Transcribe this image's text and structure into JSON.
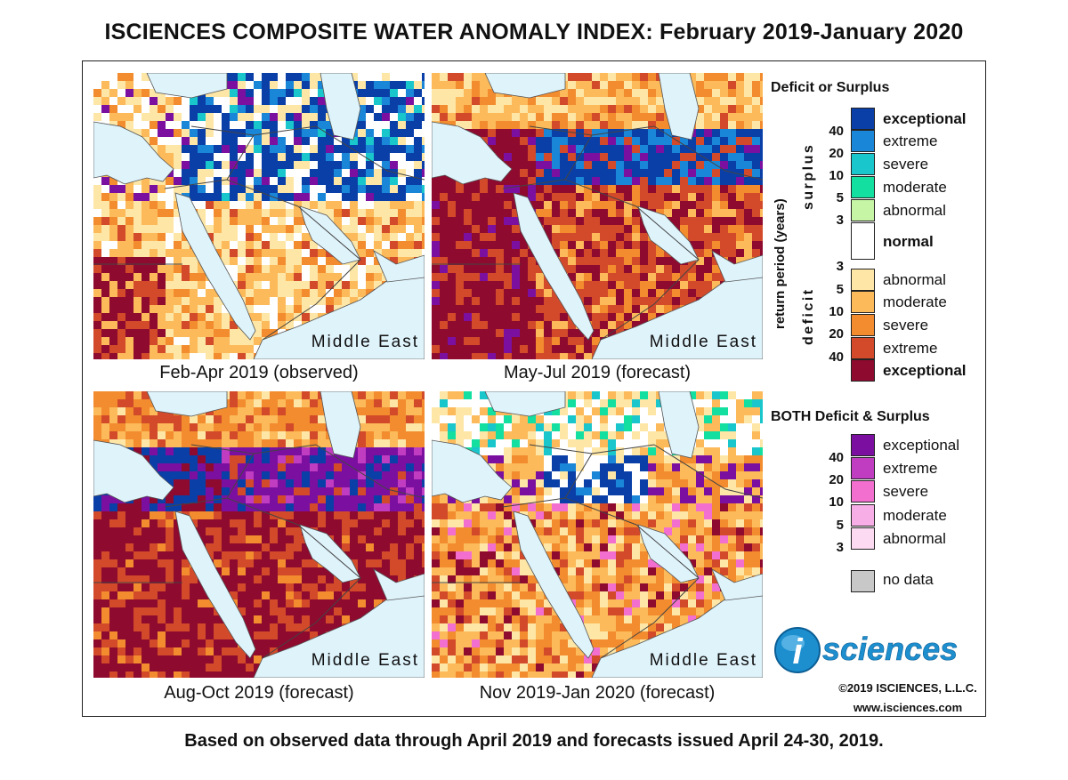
{
  "title": "ISCIENCES COMPOSITE WATER ANOMALY INDEX: February 2019-January 2020",
  "footer": "Based on observed data through April 2019 and forecasts issued April 24-30, 2019.",
  "maps": [
    {
      "caption": "Feb-Apr 2019 (observed)",
      "region": "Middle East"
    },
    {
      "caption": "May-Jul 2019 (forecast)",
      "region": "Middle East"
    },
    {
      "caption": "Aug-Oct 2019 (forecast)",
      "region": "Middle East"
    },
    {
      "caption": "Nov 2019-Jan 2020 (forecast)",
      "region": "Middle East"
    }
  ],
  "legend": {
    "deficit_surplus_title": "Deficit or Surplus",
    "axis_label": "return period (years)",
    "surplus_label": "surplus",
    "deficit_label": "deficit",
    "surplus_numbers": [
      "40",
      "20",
      "10",
      "5",
      "3"
    ],
    "deficit_numbers": [
      "3",
      "5",
      "10",
      "20",
      "40"
    ],
    "classes": [
      {
        "label": "exceptional",
        "color": "#0a3fa8"
      },
      {
        "label": "extreme",
        "color": "#1a86d8"
      },
      {
        "label": "severe",
        "color": "#19c6cc"
      },
      {
        "label": "moderate",
        "color": "#12dfa0"
      },
      {
        "label": "abnormal",
        "color": "#c6f5a6"
      },
      {
        "label": "normal",
        "color": "#ffffff"
      },
      {
        "label": "abnormal",
        "color": "#fde6a6"
      },
      {
        "label": "moderate",
        "color": "#fcba5a"
      },
      {
        "label": "severe",
        "color": "#f28c2e"
      },
      {
        "label": "extreme",
        "color": "#d24a2a"
      },
      {
        "label": "exceptional",
        "color": "#8e0a2e"
      }
    ],
    "both_title": "BOTH Deficit & Surplus",
    "both_numbers": [
      "40",
      "20",
      "10",
      "5",
      "3"
    ],
    "both_classes": [
      {
        "label": "exceptional",
        "color": "#7b0fa0"
      },
      {
        "label": "extreme",
        "color": "#c03cc0"
      },
      {
        "label": "severe",
        "color": "#f26fd0"
      },
      {
        "label": "moderate",
        "color": "#f7aee6"
      },
      {
        "label": "abnormal",
        "color": "#fbdaf2"
      }
    ],
    "no_data": {
      "label": "no data",
      "color": "#c8c8c8"
    }
  },
  "logo_text": "sciences",
  "logo_letter": "i",
  "copyright": "©2019 ISCIENCES, L.L.C.",
  "website": "www.isciences.com"
}
